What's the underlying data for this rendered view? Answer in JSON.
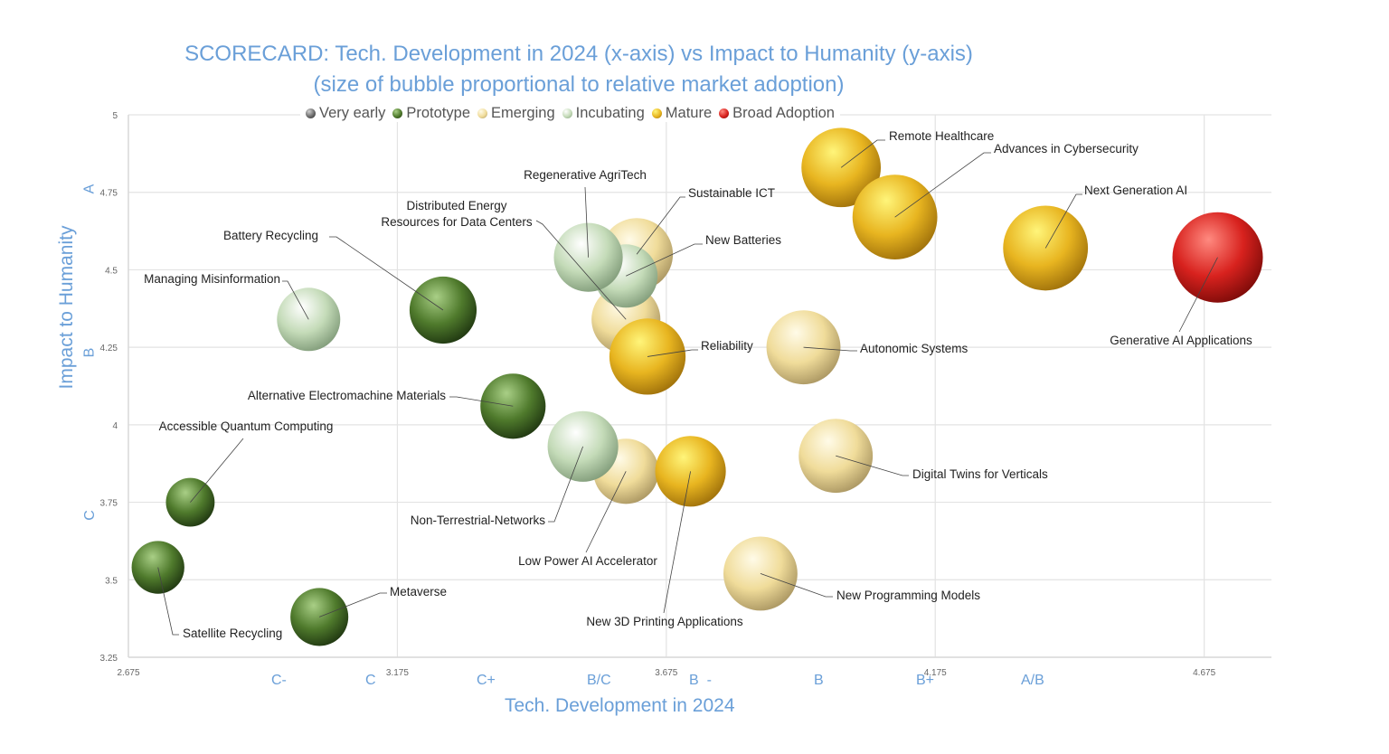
{
  "chart_data": {
    "type": "bubble",
    "title": "SCORECARD: Tech. Development in 2024 (x-axis) vs Impact to Humanity (y-axis)",
    "subtitle": "(size of bubble proportional to relative market adoption)",
    "xlabel": "Tech. Development in 2024",
    "ylabel": "Impact to Humanity",
    "xlim": [
      2.675,
      4.8
    ],
    "ylim": [
      3.25,
      5
    ],
    "x_ticks": [
      "2.675",
      "3.175",
      "3.675",
      "4.175",
      "4.675"
    ],
    "y_ticks": [
      "3.25",
      "3.5",
      "3.75",
      "4",
      "4.25",
      "4.5",
      "4.75",
      "5"
    ],
    "x_grade_labels": [
      "C-",
      "C",
      "C+",
      "B/C",
      "B  -",
      "B",
      "B+",
      "A/B"
    ],
    "y_grade_labels": [
      "A",
      "B",
      "C"
    ],
    "grid": true,
    "legend_position": "top",
    "series": [
      {
        "name": "Very early",
        "color": "#6b6b6b"
      },
      {
        "name": "Prototype",
        "color": "#4f7a2c"
      },
      {
        "name": "Emerging",
        "color": "#f0dc9a"
      },
      {
        "name": "Incubating",
        "color": "#c4dbb8"
      },
      {
        "name": "Mature",
        "color": "#e8b520"
      },
      {
        "name": "Broad Adoption",
        "color": "#d8221e"
      }
    ],
    "points": [
      {
        "label": "Remote Healthcare",
        "series": "Mature",
        "x": 4.0,
        "y": 4.83,
        "size": 0.77
      },
      {
        "label": "Advances in Cybersecurity",
        "series": "Mature",
        "x": 4.1,
        "y": 4.67,
        "size": 0.88
      },
      {
        "label": "Next Generation AI",
        "series": "Mature",
        "x": 4.38,
        "y": 4.57,
        "size": 0.88
      },
      {
        "label": "Generative AI Applications",
        "series": "Broad Adoption",
        "x": 4.7,
        "y": 4.54,
        "size": 1.0
      },
      {
        "label": "Sustainable ICT",
        "series": "Emerging",
        "x": 3.62,
        "y": 4.55,
        "size": 0.64
      },
      {
        "label": "Distributed Energy Resources for  Data Centers",
        "series": "Emerging",
        "x": 3.6,
        "y": 4.34,
        "size": 0.58
      },
      {
        "label": "New Batteries",
        "series": "Incubating",
        "x": 3.6,
        "y": 4.48,
        "size": 0.49
      },
      {
        "label": "Regenerative AgriTech",
        "series": "Incubating",
        "x": 3.53,
        "y": 4.54,
        "size": 0.58
      },
      {
        "label": "Reliability",
        "series": "Mature",
        "x": 3.64,
        "y": 4.22,
        "size": 0.71
      },
      {
        "label": "Autonomic Systems",
        "series": "Emerging",
        "x": 3.93,
        "y": 4.25,
        "size": 0.67
      },
      {
        "label": "Managing Misinformation",
        "series": "Incubating",
        "x": 3.01,
        "y": 4.34,
        "size": 0.49
      },
      {
        "label": "Battery Recycling",
        "series": "Prototype",
        "x": 3.26,
        "y": 4.37,
        "size": 0.55
      },
      {
        "label": "Alternative Electromachine Materials",
        "series": "Prototype",
        "x": 3.39,
        "y": 4.06,
        "size": 0.52
      },
      {
        "label": "Accessible Quantum Computing",
        "series": "Prototype",
        "x": 2.79,
        "y": 3.75,
        "size": 0.29
      },
      {
        "label": "Satellite Recycling",
        "series": "Prototype",
        "x": 2.73,
        "y": 3.54,
        "size": 0.34
      },
      {
        "label": "Metaverse",
        "series": "Prototype",
        "x": 3.03,
        "y": 3.38,
        "size": 0.41
      },
      {
        "label": "Low Power AI Accelerator",
        "series": "Emerging",
        "x": 3.6,
        "y": 3.85,
        "size": 0.52
      },
      {
        "label": "Non-Terrestrial-Networks",
        "series": "Incubating",
        "x": 3.52,
        "y": 3.93,
        "size": 0.61
      },
      {
        "label": "New 3D Printing Applications",
        "series": "Mature",
        "x": 3.72,
        "y": 3.85,
        "size": 0.61
      },
      {
        "label": "Digital Twins for Verticals",
        "series": "Emerging",
        "x": 3.99,
        "y": 3.9,
        "size": 0.67
      },
      {
        "label": "New Programming Models",
        "series": "Emerging",
        "x": 3.85,
        "y": 3.52,
        "size": 0.67
      }
    ]
  }
}
